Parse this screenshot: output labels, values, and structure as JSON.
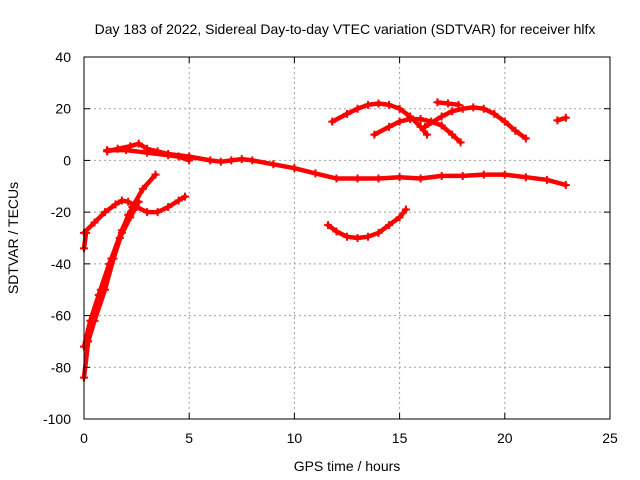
{
  "chart_data": {
    "type": "line",
    "title": "Day 183 of 2022, Sidereal Day-to-day VTEC variation (SDTVAR) for receiver hlfx",
    "xlabel": "GPS time / hours",
    "ylabel": "SDTVAR / TECUs",
    "xlim": [
      0,
      25
    ],
    "ylim": [
      -100,
      40
    ],
    "xticks": [
      0,
      5,
      10,
      15,
      20,
      25
    ],
    "yticks": [
      40,
      20,
      0,
      -20,
      -40,
      -60,
      -80,
      -100
    ],
    "xtick_labels": [
      "0",
      "5",
      "10",
      "15",
      "20",
      "25"
    ],
    "ytick_labels": [
      "40",
      "20",
      "0",
      "-20",
      "-40",
      "-60",
      "-80",
      "-100"
    ],
    "grid": true,
    "color": "#ff0000",
    "series": [
      {
        "name": "main-band",
        "points": [
          [
            1.1,
            3.5
          ],
          [
            1.6,
            4.5
          ],
          [
            2.2,
            5.5
          ],
          [
            2.6,
            6.5
          ],
          [
            3.0,
            4.5
          ],
          [
            3.5,
            3.5
          ],
          [
            4.0,
            2.5
          ],
          [
            5.0,
            1.5
          ],
          [
            6.0,
            0
          ],
          [
            6.5,
            -0.5
          ],
          [
            7.0,
            0
          ],
          [
            7.5,
            0.5
          ],
          [
            8.0,
            0
          ],
          [
            9.0,
            -1.5
          ],
          [
            10.0,
            -3
          ],
          [
            11.0,
            -5
          ],
          [
            12.0,
            -7
          ],
          [
            13.0,
            -7
          ],
          [
            14.0,
            -7
          ],
          [
            15.0,
            -6.5
          ],
          [
            16.0,
            -7
          ],
          [
            17.0,
            -6
          ],
          [
            18.0,
            -6
          ],
          [
            19.0,
            -5.5
          ],
          [
            20.0,
            -5.5
          ],
          [
            21.0,
            -6.5
          ],
          [
            22.0,
            -7.5
          ],
          [
            22.9,
            -9.5
          ]
        ]
      },
      {
        "name": "upper-band",
        "points": [
          [
            1.1,
            4
          ],
          [
            2.0,
            4
          ],
          [
            3.0,
            3
          ],
          [
            4.0,
            2
          ],
          [
            4.5,
            1.5
          ],
          [
            5.0,
            0
          ]
        ]
      },
      {
        "name": "low-arc",
        "points": [
          [
            0.0,
            -28
          ],
          [
            0.5,
            -24
          ],
          [
            1.0,
            -20
          ],
          [
            1.5,
            -17
          ],
          [
            1.8,
            -15.5
          ],
          [
            2.1,
            -16
          ],
          [
            2.5,
            -18
          ],
          [
            3.0,
            -20
          ],
          [
            3.5,
            -20
          ],
          [
            4.0,
            -18
          ],
          [
            4.5,
            -15.5
          ],
          [
            4.8,
            -14
          ]
        ]
      },
      {
        "name": "dip-a",
        "points": [
          [
            0.0,
            -84
          ],
          [
            0.2,
            -70
          ],
          [
            0.5,
            -62
          ],
          [
            1.0,
            -50
          ],
          [
            1.4,
            -38
          ],
          [
            1.8,
            -28
          ],
          [
            2.1,
            -21
          ],
          [
            2.4,
            -17
          ]
        ]
      },
      {
        "name": "dip-b",
        "points": [
          [
            0.0,
            -72
          ],
          [
            0.3,
            -62
          ],
          [
            0.7,
            -52
          ],
          [
            1.2,
            -40
          ],
          [
            1.7,
            -30
          ],
          [
            2.2,
            -22
          ],
          [
            2.6,
            -16
          ]
        ]
      },
      {
        "name": "dip-c",
        "points": [
          [
            0.3,
            -65
          ],
          [
            0.8,
            -50
          ],
          [
            1.3,
            -38
          ],
          [
            1.8,
            -27
          ],
          [
            2.3,
            -18
          ],
          [
            2.8,
            -11
          ],
          [
            3.4,
            -5.5
          ]
        ]
      },
      {
        "name": "dip-d",
        "points": [
          [
            0.0,
            -34
          ],
          [
            0.1,
            -28
          ]
        ]
      },
      {
        "name": "bowl",
        "points": [
          [
            11.6,
            -25
          ],
          [
            12.0,
            -27.5
          ],
          [
            12.5,
            -29.5
          ],
          [
            13.0,
            -30
          ],
          [
            13.5,
            -29.5
          ],
          [
            14.0,
            -28
          ],
          [
            14.5,
            -25
          ],
          [
            15.0,
            -22
          ],
          [
            15.3,
            -19
          ]
        ]
      },
      {
        "name": "hump-1",
        "points": [
          [
            11.8,
            15
          ],
          [
            12.5,
            18
          ],
          [
            13.0,
            20
          ],
          [
            13.5,
            21.5
          ],
          [
            14.0,
            22
          ],
          [
            14.5,
            21.5
          ],
          [
            15.0,
            20
          ],
          [
            15.5,
            17
          ],
          [
            16.0,
            13
          ],
          [
            16.3,
            10
          ]
        ]
      },
      {
        "name": "hump-2",
        "points": [
          [
            13.8,
            10
          ],
          [
            14.5,
            13
          ],
          [
            15.0,
            15
          ],
          [
            15.5,
            16
          ],
          [
            16.0,
            16
          ],
          [
            16.5,
            15
          ],
          [
            17.0,
            13.5
          ],
          [
            17.5,
            10
          ],
          [
            17.9,
            7
          ]
        ]
      },
      {
        "name": "hump-3",
        "points": [
          [
            16.2,
            13
          ],
          [
            17.0,
            17
          ],
          [
            17.5,
            19
          ],
          [
            18.0,
            20
          ],
          [
            18.5,
            20.5
          ],
          [
            19.0,
            20
          ],
          [
            19.5,
            18
          ],
          [
            20.0,
            15
          ],
          [
            20.5,
            11.5
          ],
          [
            21.0,
            8.5
          ]
        ]
      },
      {
        "name": "hump-4",
        "points": [
          [
            16.8,
            22.5
          ],
          [
            17.3,
            22
          ],
          [
            17.8,
            21.5
          ]
        ]
      },
      {
        "name": "tail",
        "points": [
          [
            22.5,
            15.5
          ],
          [
            22.9,
            16.5
          ]
        ]
      }
    ]
  }
}
